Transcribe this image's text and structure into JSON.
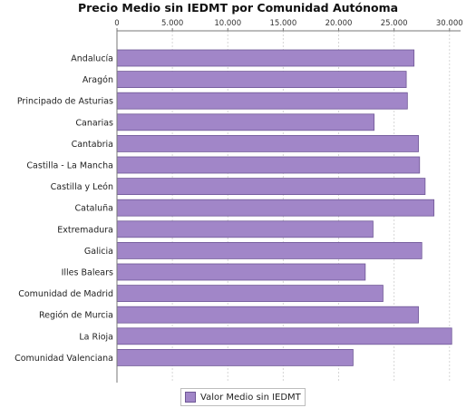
{
  "chart_data": {
    "type": "bar",
    "orientation": "horizontal",
    "title": "Precio Medio sin IEDMT por Comunidad Autónoma",
    "categories": [
      "Andalucía",
      "Aragón",
      "Principado de Asturias",
      "Canarias",
      "Cantabria",
      "Castilla - La Mancha",
      "Castilla y León",
      "Cataluña",
      "Extremadura",
      "Galicia",
      "Illes Balears",
      "Comunidad de Madrid",
      "Región de Murcia",
      "La Rioja",
      "Comunidad Valenciana"
    ],
    "series": [
      {
        "name": "Valor Medio sin IEDMT",
        "color": "#a186c8",
        "values": [
          26800,
          26100,
          26200,
          23200,
          27200,
          27300,
          27800,
          28600,
          23100,
          27500,
          22400,
          24000,
          27200,
          30200,
          21300
        ]
      }
    ],
    "xlim": [
      0,
      31000
    ],
    "xticks": [
      0,
      5000,
      10000,
      15000,
      20000,
      25000,
      30000
    ],
    "xtick_labels": [
      "0",
      "5.000",
      "10.000",
      "15.000",
      "20.000",
      "25.000",
      "30.000"
    ],
    "xaxis_position": "top",
    "grid": true,
    "legend_position": "bottom"
  }
}
